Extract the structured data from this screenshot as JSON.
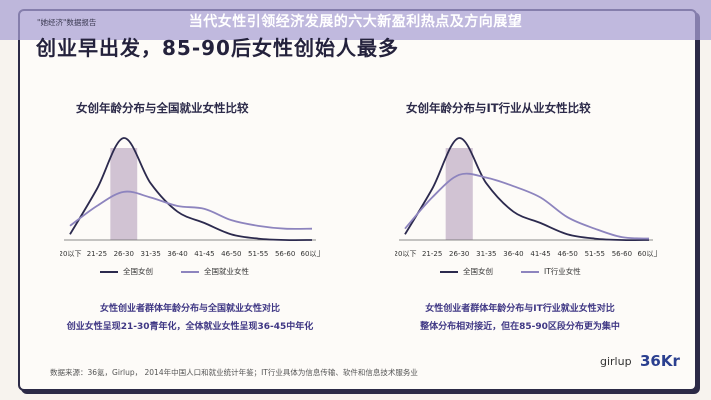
{
  "banner": {
    "title": "当代女性引领经济发展的六大新盈利热点及方向展望"
  },
  "header": {
    "report_tag": "\"她经济\"数据报告",
    "headline": "创业早出发，85-90后女性创始人最多"
  },
  "chart_data": [
    {
      "type": "line",
      "title": "女创年龄分布与全国就业女性比较",
      "categories": [
        "20以下",
        "21-25",
        "26-30",
        "31-35",
        "36-40",
        "41-45",
        "46-50",
        "51-55",
        "56-60",
        "60以上"
      ],
      "highlight_category": "26-30",
      "series": [
        {
          "name": "全国女创",
          "color": "#2c2a4e",
          "values": [
            2,
            18,
            36,
            20,
            10,
            6,
            2,
            0.5,
            0,
            0
          ]
        },
        {
          "name": "全国就业女性",
          "color": "#8d84be",
          "values": [
            5,
            12,
            17,
            15,
            12,
            11,
            7,
            5,
            4,
            4
          ]
        }
      ],
      "caption": [
        "女性创业者群体年龄分布与全国就业女性对比",
        "创业女性呈现21-30青年化，全体就业女性呈现36-45中年化"
      ]
    },
    {
      "type": "line",
      "title": "女创年龄分布与IT行业从业女性比较",
      "categories": [
        "20以下",
        "21-25",
        "26-30",
        "31-35",
        "36-40",
        "41-45",
        "46-50",
        "51-55",
        "56-60",
        "60以上"
      ],
      "highlight_category": "26-30",
      "series": [
        {
          "name": "全国女创",
          "color": "#2c2a4e",
          "values": [
            2,
            18,
            36,
            20,
            10,
            6,
            2,
            0.5,
            0,
            0
          ]
        },
        {
          "name": "IT行业女性",
          "color": "#8d84be",
          "values": [
            4,
            15,
            23,
            22,
            19,
            15,
            8,
            4,
            1,
            0.5
          ]
        }
      ],
      "caption": [
        "女性创业者群体年龄分布与IT行业就业女性对比",
        "整体分布相对接近，但在85-90区段分布更为集中"
      ]
    }
  ],
  "footer": {
    "source": "数据来源：36氪，Girlup， 2014年中国人口和就业统计年鉴；IT行业具体为信息传输、软件和信息技术服务业"
  },
  "logos": {
    "girlup": "girlup",
    "kr": "36Kr"
  }
}
